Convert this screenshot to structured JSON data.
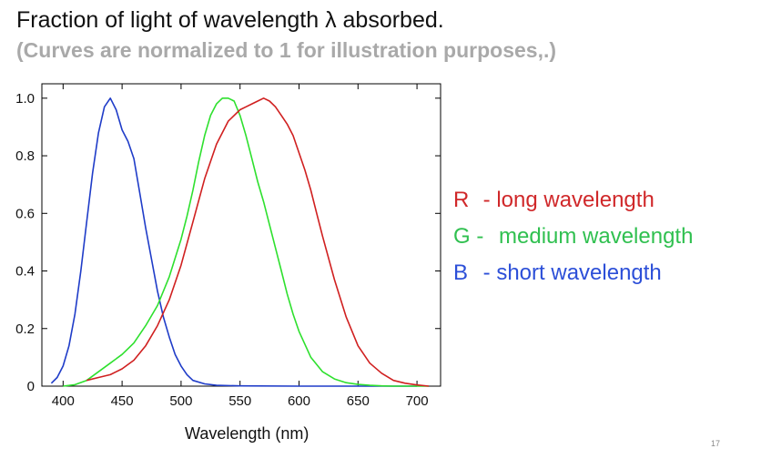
{
  "slide": {
    "title": "Fraction of light of wavelength λ absorbed.",
    "subtitle": "(Curves are normalized to 1 for illustration purposes,.)",
    "slide_number": "17"
  },
  "legend": {
    "items": [
      {
        "letter": "R",
        "text": "- long wavelength",
        "color": "#d0282a"
      },
      {
        "letter": "G -",
        "text": "medium wavelength",
        "color": "#30c050"
      },
      {
        "letter": "B",
        "text": "- short wavelength",
        "color": "#2c4fd8"
      }
    ]
  },
  "chart_data": {
    "type": "line",
    "title": "",
    "xlabel": "Wavelength (nm)",
    "ylabel": "",
    "xlim": [
      382,
      720
    ],
    "ylim": [
      0,
      1.05
    ],
    "xticks": [
      400,
      450,
      500,
      550,
      600,
      650,
      700
    ],
    "yticks": [
      0,
      0.2,
      0.4,
      0.6,
      0.8,
      1.0
    ],
    "ytick_labels": [
      "0",
      "0.2",
      "0.4",
      "0.6",
      "0.8",
      "1.0"
    ],
    "series": [
      {
        "name": "B",
        "color": "#1f3cc8",
        "x": [
          390,
          395,
          400,
          405,
          410,
          415,
          420,
          425,
          430,
          435,
          440,
          445,
          450,
          455,
          460,
          465,
          470,
          475,
          480,
          485,
          490,
          495,
          500,
          505,
          510,
          520,
          530,
          550,
          600,
          700
        ],
        "y": [
          0.01,
          0.03,
          0.07,
          0.14,
          0.25,
          0.4,
          0.57,
          0.74,
          0.88,
          0.97,
          1.0,
          0.96,
          0.89,
          0.85,
          0.79,
          0.67,
          0.55,
          0.44,
          0.33,
          0.24,
          0.17,
          0.11,
          0.07,
          0.04,
          0.02,
          0.008,
          0.003,
          0.001,
          0.0,
          0.0
        ]
      },
      {
        "name": "G",
        "color": "#2ee02e",
        "x": [
          400,
          410,
          420,
          430,
          440,
          450,
          460,
          470,
          480,
          490,
          500,
          505,
          510,
          515,
          520,
          525,
          530,
          535,
          540,
          545,
          550,
          555,
          560,
          565,
          570,
          575,
          580,
          585,
          590,
          595,
          600,
          610,
          620,
          630,
          640,
          650,
          660,
          670,
          680,
          690,
          700,
          710
        ],
        "y": [
          0.0,
          0.005,
          0.02,
          0.05,
          0.08,
          0.11,
          0.15,
          0.21,
          0.28,
          0.38,
          0.51,
          0.59,
          0.68,
          0.78,
          0.87,
          0.94,
          0.98,
          1.0,
          1.0,
          0.99,
          0.94,
          0.87,
          0.79,
          0.71,
          0.64,
          0.56,
          0.48,
          0.4,
          0.32,
          0.25,
          0.19,
          0.1,
          0.05,
          0.025,
          0.012,
          0.006,
          0.003,
          0.001,
          0.0,
          0.0,
          0.0,
          0.0
        ]
      },
      {
        "name": "R",
        "color": "#d02020",
        "x": [
          420,
          430,
          440,
          450,
          460,
          470,
          480,
          490,
          500,
          510,
          520,
          530,
          540,
          550,
          555,
          560,
          565,
          570,
          575,
          580,
          585,
          590,
          595,
          600,
          605,
          610,
          615,
          620,
          630,
          640,
          650,
          660,
          670,
          680,
          690,
          700,
          710
        ],
        "y": [
          0.02,
          0.03,
          0.04,
          0.06,
          0.09,
          0.14,
          0.21,
          0.3,
          0.42,
          0.57,
          0.72,
          0.84,
          0.92,
          0.96,
          0.97,
          0.98,
          0.99,
          1.0,
          0.99,
          0.97,
          0.94,
          0.91,
          0.87,
          0.81,
          0.75,
          0.68,
          0.6,
          0.52,
          0.37,
          0.24,
          0.14,
          0.08,
          0.045,
          0.02,
          0.01,
          0.004,
          0.0
        ]
      }
    ],
    "grid": false,
    "legend": "right-outside"
  }
}
